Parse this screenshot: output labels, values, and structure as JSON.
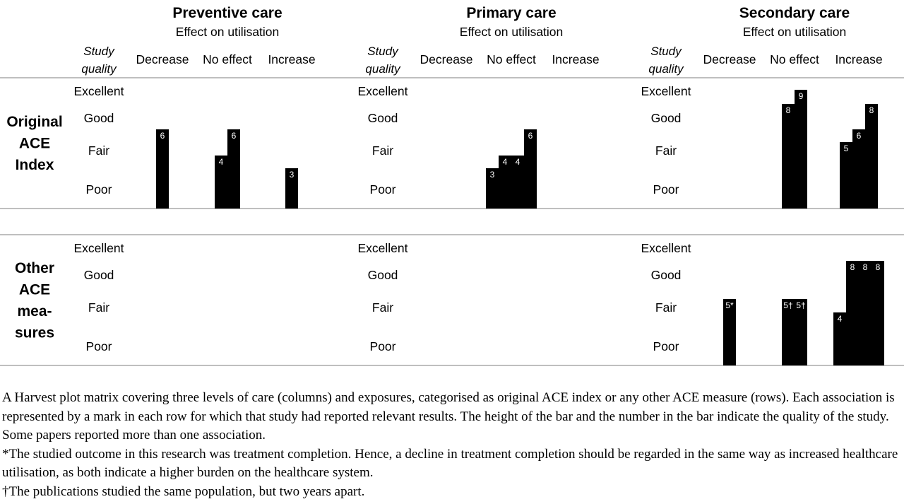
{
  "chart_data": {
    "type": "bar",
    "subtype": "harvest-plot-matrix",
    "care_levels": [
      "Preventive care",
      "Primary care",
      "Secondary care"
    ],
    "subtitle": "Effect on utilisation",
    "study_quality_header": "Study quality",
    "quality_levels": [
      "Excellent",
      "Good",
      "Fair",
      "Poor"
    ],
    "effect_categories": [
      "Decrease",
      "No effect",
      "Increase"
    ],
    "exposures": [
      {
        "name": "Original ACE Index",
        "name_lines": [
          "Original",
          "ACE",
          "Index"
        ],
        "panels": [
          {
            "care": "Preventive care",
            "Decrease": [
              "6"
            ],
            "No effect": [
              "4",
              "6"
            ],
            "Increase": [
              "3"
            ]
          },
          {
            "care": "Primary care",
            "Decrease": [],
            "No effect": [
              "3",
              "4",
              "4",
              "6"
            ],
            "Increase": []
          },
          {
            "care": "Secondary care",
            "Decrease": [],
            "No effect": [
              "8",
              "9"
            ],
            "Increase": [
              "5",
              "6",
              "8"
            ]
          }
        ]
      },
      {
        "name": "Other ACE measures",
        "name_lines": [
          "Other",
          "ACE",
          "mea-",
          "sures"
        ],
        "panels": [
          {
            "care": "Preventive care",
            "Decrease": [],
            "No effect": [],
            "Increase": []
          },
          {
            "care": "Primary care",
            "Decrease": [],
            "No effect": [],
            "Increase": []
          },
          {
            "care": "Secondary care",
            "Decrease": [
              "5*"
            ],
            "No effect": [
              "5†",
              "5†"
            ],
            "Increase": [
              "4",
              "8",
              "8",
              "8"
            ]
          }
        ]
      }
    ],
    "bar_height_meaning": "quality of the study"
  },
  "caption": [
    "A Harvest plot matrix covering three levels of care (columns) and exposures, categorised as original ACE index or any other ACE measure (rows). Each association is represented by a mark in each row for which that study had reported relevant results. The height of the bar and the number in the bar indicate the quality of the study. Some papers reported more than one association.",
    "*The studied outcome in this research was treatment completion. Hence, a decline in treatment completion should be regarded in the same way as increased healthcare utilisation, as both indicate a higher burden on the healthcare system.",
    "†The publications studied the same population, but two years apart."
  ]
}
